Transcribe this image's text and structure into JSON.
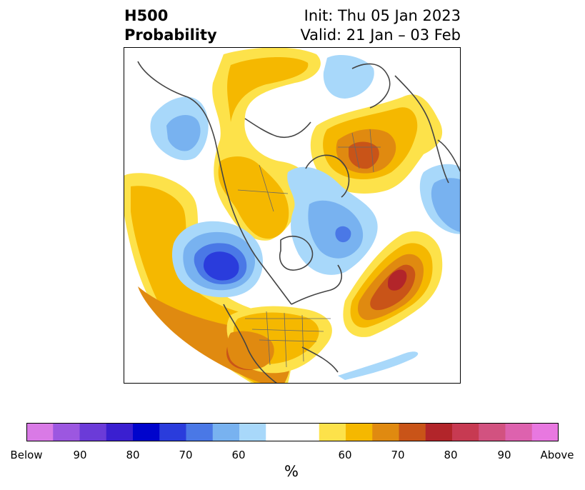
{
  "title": {
    "left_line1": "H500",
    "left_line2": "Probability",
    "right_line1": "Init: Thu 05 Jan 2023",
    "right_line2": "Valid: 21 Jan – 03 Feb"
  },
  "colorbar": {
    "unit": "%",
    "colors": [
      "#d97ae6",
      "#9c57e0",
      "#6b3bd8",
      "#3a1fd0",
      "#0004cc",
      "#2a3cdc",
      "#4a78e6",
      "#78b2f0",
      "#a8d8fa",
      "#ffffff",
      "#ffffff",
      "#fde24a",
      "#f5b800",
      "#e08a10",
      "#c95418",
      "#b2252a",
      "#c73a52",
      "#d25280",
      "#dd62ae",
      "#e878e0"
    ],
    "tick_labels": [
      "Below",
      "90",
      "80",
      "70",
      "60",
      "60",
      "70",
      "80",
      "90",
      "Above"
    ]
  },
  "map_legend": {
    "below_colors": {
      "b60": "#a8d8fa",
      "b65": "#78b2f0",
      "b70": "#4a78e6",
      "b75": "#2a3cdc"
    },
    "above_colors": {
      "a55": "#fde24a",
      "a60": "#f5b800",
      "a65": "#e08a10",
      "a70": "#c95418",
      "a75": "#b2252a"
    }
  }
}
